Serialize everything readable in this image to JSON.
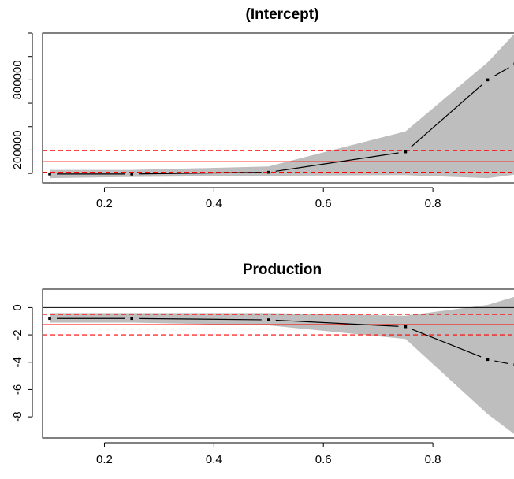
{
  "chart_data": [
    {
      "type": "line",
      "title": "(Intercept)",
      "xlabel": "",
      "ylabel": "",
      "x": [
        0.1,
        0.25,
        0.5,
        0.75,
        0.9,
        0.95
      ],
      "xlim": [
        0.087,
        0.964
      ],
      "ylim": [
        -80000,
        1200000
      ],
      "x_ticks": [
        0.2,
        0.4,
        0.6,
        0.8
      ],
      "x_tick_labels": [
        "0.2",
        "0.4",
        "0.6",
        "0.8"
      ],
      "y_ticks": [
        0,
        200000,
        400000,
        600000,
        800000,
        1000000,
        1200000
      ],
      "y_tick_labels": [
        "200000",
        "800000"
      ],
      "y_tick_label_values": [
        200000,
        800000
      ],
      "series": [
        {
          "values": [
            -5000,
            -5000,
            10000,
            185000,
            800000,
            935000
          ]
        },
        {
          "values": [
            -40000,
            -30000,
            -20000,
            -15000,
            -40000,
            -10000
          ]
        },
        {
          "values": [
            30000,
            30000,
            60000,
            360000,
            950000,
            1200000
          ]
        }
      ],
      "reference_lines": {
        "solid": 100000,
        "dashed": [
          10000,
          195000
        ]
      },
      "colors": {
        "band": "#bebebe",
        "line": "#000000",
        "reference": "#ff0000"
      },
      "grid": false
    },
    {
      "type": "line",
      "title": "Production",
      "xlabel": "",
      "ylabel": "",
      "x": [
        0.1,
        0.25,
        0.5,
        0.75,
        0.9,
        0.95
      ],
      "xlim": [
        0.087,
        0.964
      ],
      "ylim": [
        -9.55,
        1.35
      ],
      "x_ticks": [
        0.2,
        0.4,
        0.6,
        0.8
      ],
      "x_tick_labels": [
        "0.2",
        "0.4",
        "0.6",
        "0.8"
      ],
      "y_ticks": [
        0,
        -2,
        -4,
        -6,
        -8
      ],
      "y_tick_labels": [
        "0",
        "-2",
        "-4",
        "-6",
        "-8"
      ],
      "series": [
        {
          "values": [
            -0.8,
            -0.8,
            -0.9,
            -1.4,
            -3.8,
            -4.2
          ]
        },
        {
          "values": [
            -1.1,
            -1.1,
            -1.3,
            -2.3,
            -7.8,
            -9.3
          ]
        },
        {
          "values": [
            -0.4,
            -0.4,
            -0.4,
            -0.6,
            0.2,
            0.8
          ]
        }
      ],
      "reference_lines": {
        "solid_black": 0,
        "solid": -1.25,
        "dashed": [
          -0.5,
          -2.0
        ]
      },
      "colors": {
        "band": "#bebebe",
        "line": "#000000",
        "reference": "#ff0000"
      },
      "grid": false
    }
  ]
}
